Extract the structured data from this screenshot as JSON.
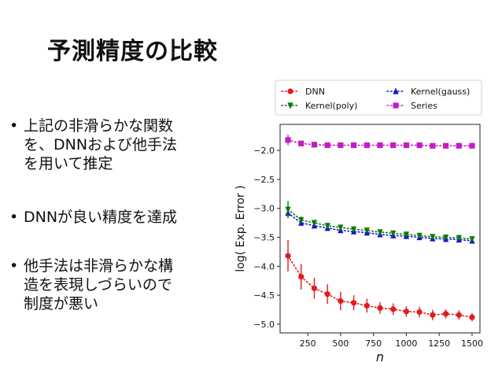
{
  "slide": {
    "title": "予測精度の比較",
    "bullets": [
      {
        "lines": [
          "上記の非滑らかな関数",
          "を、DNNおよび他手法",
          "を用いて推定"
        ]
      },
      {
        "lines": [
          "DNNが良い精度を達成"
        ]
      },
      {
        "lines": [
          "他手法は非滑らかな構",
          "造を表現しづらいので",
          "制度が悪い"
        ]
      }
    ]
  },
  "chart_data": {
    "type": "line",
    "xlabel": "n",
    "ylabel": "log( Exp. Error )",
    "xlim": [
      40,
      1560
    ],
    "ylim": [
      -5.15,
      -1.55
    ],
    "xticks": [
      250,
      500,
      750,
      1000,
      1250,
      1500
    ],
    "yticks": [
      -5.0,
      -4.5,
      -4.0,
      -3.5,
      -3.0,
      -2.5,
      -2.0
    ],
    "ytick_labels": [
      "−5.0",
      "−4.5",
      "−4.0",
      "−3.5",
      "−3.0",
      "−2.5",
      "−2.0"
    ],
    "x": [
      100,
      200,
      300,
      400,
      500,
      600,
      700,
      800,
      900,
      1000,
      1100,
      1200,
      1300,
      1400,
      1500
    ],
    "legend_position": "top (outside plot, two columns)",
    "series": [
      {
        "name": "DNN",
        "color": "#e41a1c",
        "marker": "circle",
        "values": [
          -3.82,
          -4.18,
          -4.38,
          -4.48,
          -4.6,
          -4.63,
          -4.68,
          -4.72,
          -4.74,
          -4.78,
          -4.79,
          -4.84,
          -4.82,
          -4.84,
          -4.88
        ],
        "errors": [
          0.27,
          0.22,
          0.18,
          0.17,
          0.16,
          0.13,
          0.12,
          0.1,
          0.1,
          0.09,
          0.09,
          0.09,
          0.08,
          0.08,
          0.07
        ]
      },
      {
        "name": "Kernel(gauss)",
        "color": "#1515c8",
        "marker": "triangle-up",
        "values": [
          -3.08,
          -3.25,
          -3.3,
          -3.34,
          -3.38,
          -3.4,
          -3.42,
          -3.45,
          -3.47,
          -3.48,
          -3.5,
          -3.52,
          -3.53,
          -3.54,
          -3.56
        ],
        "errors": [
          0.07,
          0.05,
          0.04,
          0.04,
          0.04,
          0.03,
          0.03,
          0.03,
          0.03,
          0.03,
          0.03,
          0.03,
          0.03,
          0.03,
          0.03
        ]
      },
      {
        "name": "Kernel(poly)",
        "color": "#0a7a0a",
        "marker": "triangle-down",
        "values": [
          -3.02,
          -3.2,
          -3.25,
          -3.3,
          -3.33,
          -3.36,
          -3.38,
          -3.41,
          -3.43,
          -3.45,
          -3.47,
          -3.49,
          -3.5,
          -3.51,
          -3.53
        ],
        "errors": [
          0.15,
          0.06,
          0.05,
          0.05,
          0.04,
          0.04,
          0.04,
          0.04,
          0.03,
          0.03,
          0.03,
          0.03,
          0.03,
          0.03,
          0.03
        ]
      },
      {
        "name": "Series",
        "color": "#c020c0",
        "marker": "square",
        "values": [
          -1.82,
          -1.88,
          -1.9,
          -1.91,
          -1.91,
          -1.91,
          -1.91,
          -1.91,
          -1.91,
          -1.91,
          -1.91,
          -1.92,
          -1.92,
          -1.92,
          -1.92
        ],
        "errors": [
          0.09,
          0.03,
          0.02,
          0.02,
          0.02,
          0.02,
          0.02,
          0.02,
          0.02,
          0.02,
          0.02,
          0.02,
          0.02,
          0.02,
          0.02
        ]
      }
    ]
  }
}
